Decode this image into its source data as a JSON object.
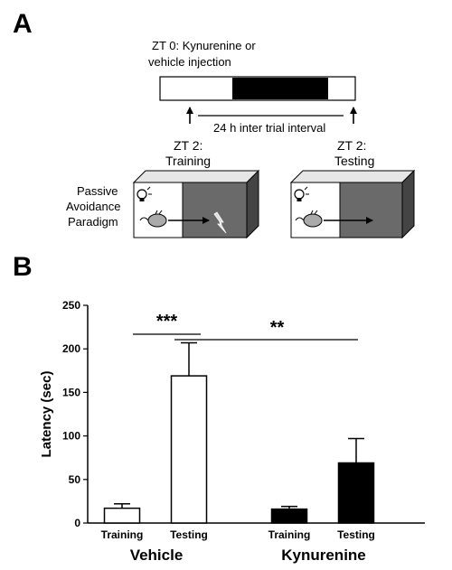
{
  "panel_a": {
    "letter": "A",
    "injection_line1": "ZT 0: Kynurenine or",
    "injection_line2": "vehicle injection",
    "interval": "24 h inter trial interval",
    "training_line1": "ZT 2:",
    "training_line2": "Training",
    "testing_line1": "ZT 2:",
    "testing_line2": "Testing",
    "paradigm_line1": "Passive",
    "paradigm_line2": "Avoidance",
    "paradigm_line3": "Paradigm",
    "icons": [
      "light-bulb-icon",
      "mouse-icon",
      "shock-icon",
      "arrow-right-icon"
    ]
  },
  "panel_b": {
    "letter": "B",
    "significance": [
      {
        "label": "***",
        "from": "Vehicle Training",
        "to": "Vehicle Testing"
      },
      {
        "label": "**",
        "from": "Vehicle Testing",
        "to": "Kynurenine Testing"
      }
    ]
  },
  "chart_data": {
    "type": "bar",
    "ylabel": "Latency (sec)",
    "ylim": [
      0,
      250
    ],
    "yticks": [
      0,
      50,
      100,
      150,
      200,
      250
    ],
    "groups": [
      "Vehicle",
      "Kynurenine"
    ],
    "categories": [
      "Training",
      "Testing"
    ],
    "series": [
      {
        "name": "Vehicle",
        "values": [
          17,
          169
        ],
        "errors": [
          5,
          38
        ],
        "color": "#ffffff"
      },
      {
        "name": "Kynurenine",
        "values": [
          16,
          69
        ],
        "errors": [
          3,
          28
        ],
        "color": "#000000"
      }
    ],
    "grid": false,
    "legend": "none"
  }
}
